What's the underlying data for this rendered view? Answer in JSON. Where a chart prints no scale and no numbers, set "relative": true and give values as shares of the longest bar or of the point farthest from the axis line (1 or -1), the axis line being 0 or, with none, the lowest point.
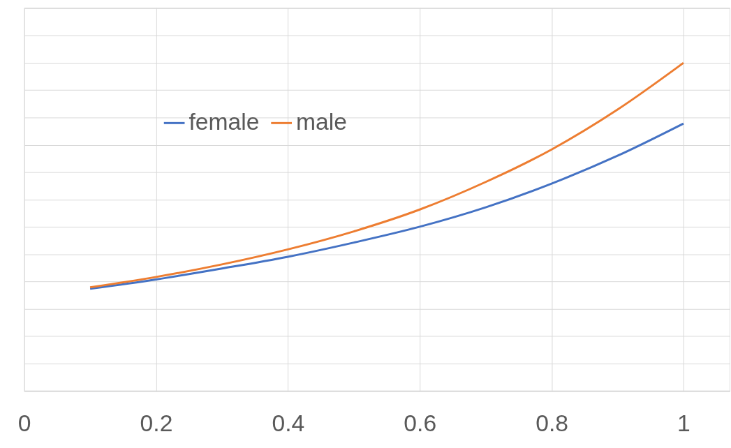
{
  "chart_data": {
    "type": "line",
    "relative": true,
    "x": [
      0.1,
      0.2,
      0.3,
      0.4,
      0.5,
      0.6,
      0.7,
      0.8,
      0.9,
      1.0
    ],
    "xlim": [
      0,
      1.07
    ],
    "xticks": [
      0,
      0.2,
      0.4,
      0.6,
      0.8,
      1
    ],
    "series": [
      {
        "name": "female",
        "color": "#4472c4",
        "values": [
          0.173,
          0.207,
          0.247,
          0.29,
          0.342,
          0.4,
          0.471,
          0.558,
          0.66,
          0.778
        ]
      },
      {
        "name": "male",
        "color": "#ed7d31",
        "values": [
          0.178,
          0.216,
          0.262,
          0.317,
          0.383,
          0.463,
          0.564,
          0.683,
          0.829,
          1.0
        ]
      }
    ],
    "grid": true,
    "legend": "top left",
    "tick_labels": "x",
    "marker": "none",
    "line_style": "solid"
  }
}
